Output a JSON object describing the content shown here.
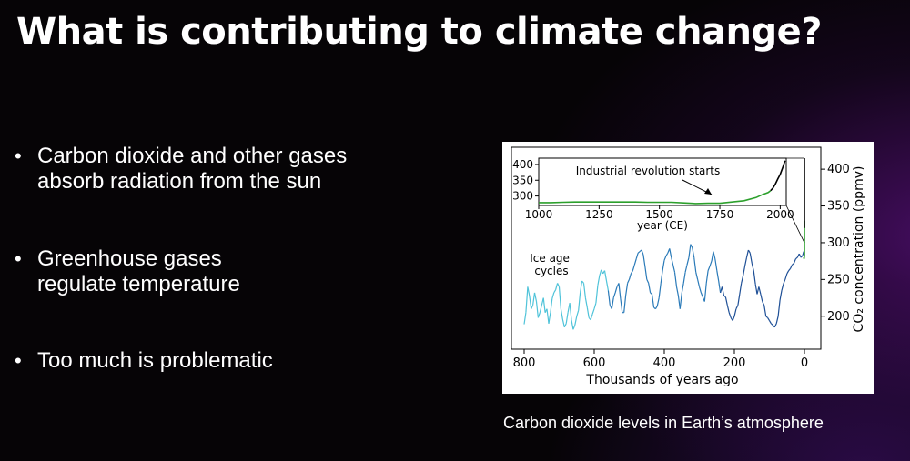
{
  "title": "What is contributing to climate change?",
  "bullets": [
    {
      "lines": [
        "Carbon dioxide and other gases",
        "absorb radiation from the sun"
      ]
    },
    {
      "lines": [
        "Greenhouse gases",
        "regulate temperature"
      ]
    },
    {
      "lines": [
        "Too much is problematic"
      ]
    }
  ],
  "caption": "Carbon dioxide levels in Earth’s atmosphere",
  "chart_data": [
    {
      "type": "line",
      "title": "",
      "xlabel": "Thousands of years ago",
      "ylabel": "CO₂ concentration (ppmv)",
      "xlim": [
        800,
        0
      ],
      "ylim": [
        170,
        415
      ],
      "xticks": [
        800,
        600,
        400,
        200,
        0
      ],
      "yticks": [
        200,
        250,
        300,
        350,
        400
      ],
      "annotation": "Ice age cycles",
      "colors": {
        "ice_core": [
          "#4fc3d9",
          "#2a7ab8",
          "#1e4f96"
        ],
        "recent": "#2ca02c",
        "modern": "#000000"
      },
      "series": [
        {
          "name": "",
          "x": [
            800,
            795,
            790,
            785,
            780,
            775,
            770,
            765,
            760,
            755,
            750,
            745,
            740,
            735,
            730,
            725,
            720,
            715,
            710,
            705,
            700,
            695,
            690,
            685,
            680,
            675,
            670,
            665,
            660,
            655,
            650,
            645,
            640,
            635,
            630,
            625,
            620,
            615,
            610,
            605,
            600,
            595,
            590,
            585,
            580,
            575,
            570,
            565,
            560,
            555,
            550,
            545,
            540,
            535,
            530,
            525,
            520,
            515,
            510,
            505,
            500,
            495,
            490,
            485,
            480,
            475,
            470,
            465,
            460,
            455,
            450,
            445,
            440,
            435,
            430,
            425,
            420,
            415,
            410,
            405,
            400,
            395,
            390,
            385,
            380,
            375,
            370,
            365,
            360,
            355,
            350,
            345,
            340,
            335,
            330,
            325,
            320,
            315,
            310,
            305,
            300,
            295,
            290,
            285,
            280,
            275,
            270,
            265,
            260,
            255,
            250,
            245,
            240,
            235,
            230,
            225,
            220,
            215,
            210,
            205,
            200,
            195,
            190,
            185,
            180,
            175,
            170,
            165,
            160,
            155,
            150,
            145,
            140,
            135,
            130,
            125,
            120,
            115,
            110,
            105,
            100,
            95,
            90,
            85,
            80,
            75,
            70,
            65,
            60,
            55,
            50,
            45,
            40,
            35,
            30,
            25,
            20,
            15,
            10,
            5,
            2
          ],
          "values": [
            189,
            205,
            240,
            228,
            210,
            215,
            232,
            220,
            198,
            205,
            215,
            225,
            205,
            210,
            190,
            205,
            224,
            232,
            236,
            245,
            240,
            210,
            196,
            185,
            190,
            205,
            218,
            195,
            182,
            188,
            200,
            208,
            232,
            248,
            245,
            225,
            212,
            198,
            195,
            203,
            210,
            218,
            242,
            255,
            263,
            258,
            262,
            248,
            235,
            215,
            210,
            225,
            232,
            240,
            245,
            224,
            205,
            205,
            228,
            245,
            250,
            258,
            262,
            270,
            278,
            286,
            288,
            290,
            284,
            268,
            250,
            245,
            232,
            230,
            212,
            210,
            214,
            225,
            245,
            262,
            276,
            282,
            286,
            292,
            280,
            270,
            260,
            240,
            228,
            210,
            232,
            245,
            260,
            270,
            280,
            298,
            293,
            280,
            260,
            250,
            240,
            232,
            226,
            220,
            245,
            262,
            268,
            275,
            288,
            278,
            262,
            248,
            232,
            240,
            228,
            226,
            215,
            205,
            198,
            194,
            200,
            210,
            215,
            230,
            245,
            255,
            268,
            280,
            290,
            286,
            272,
            262,
            244,
            230,
            240,
            230,
            220,
            215,
            200,
            198,
            194,
            190,
            188,
            185,
            190,
            200,
            222,
            235,
            244,
            250,
            258,
            262,
            265,
            270,
            272,
            278,
            280,
            285,
            280,
            283,
            288
          ]
        },
        {
          "name": "",
          "x": [
            2.0,
            1.0,
            0.5,
            0.25,
            0.1,
            0.05,
            0.0
          ],
          "values": [
            280,
            278,
            280,
            281,
            282,
            300,
            330
          ]
        },
        {
          "name": "",
          "x": [
            0.05,
            0.03,
            0.01,
            0.0
          ],
          "values": [
            320,
            360,
            400,
            415
          ]
        }
      ]
    },
    {
      "type": "line",
      "title": "",
      "xlabel": "year (CE)",
      "ylabel": "",
      "xlim": [
        1000,
        2025
      ],
      "ylim": [
        270,
        420
      ],
      "xticks": [
        1000,
        1250,
        1500,
        1750,
        2000
      ],
      "yticks": [
        300,
        350,
        400
      ],
      "annotation": "Industrial revolution starts",
      "series": [
        {
          "name": "",
          "x": [
            1000,
            1050,
            1100,
            1150,
            1200,
            1250,
            1300,
            1350,
            1400,
            1450,
            1500,
            1550,
            1600,
            1650,
            1700,
            1750,
            1800,
            1850,
            1900,
            1925,
            1950,
            1960
          ],
          "values": [
            279,
            279,
            280,
            281,
            281,
            281,
            281,
            281,
            281,
            280,
            280,
            280,
            278,
            276,
            277,
            277,
            281,
            285,
            295,
            304,
            311,
            317
          ]
        },
        {
          "name": "",
          "x": [
            1960,
            1970,
            1980,
            1990,
            2000,
            2010,
            2020
          ],
          "values": [
            317,
            325,
            338,
            354,
            369,
            389,
            412
          ]
        }
      ]
    }
  ]
}
